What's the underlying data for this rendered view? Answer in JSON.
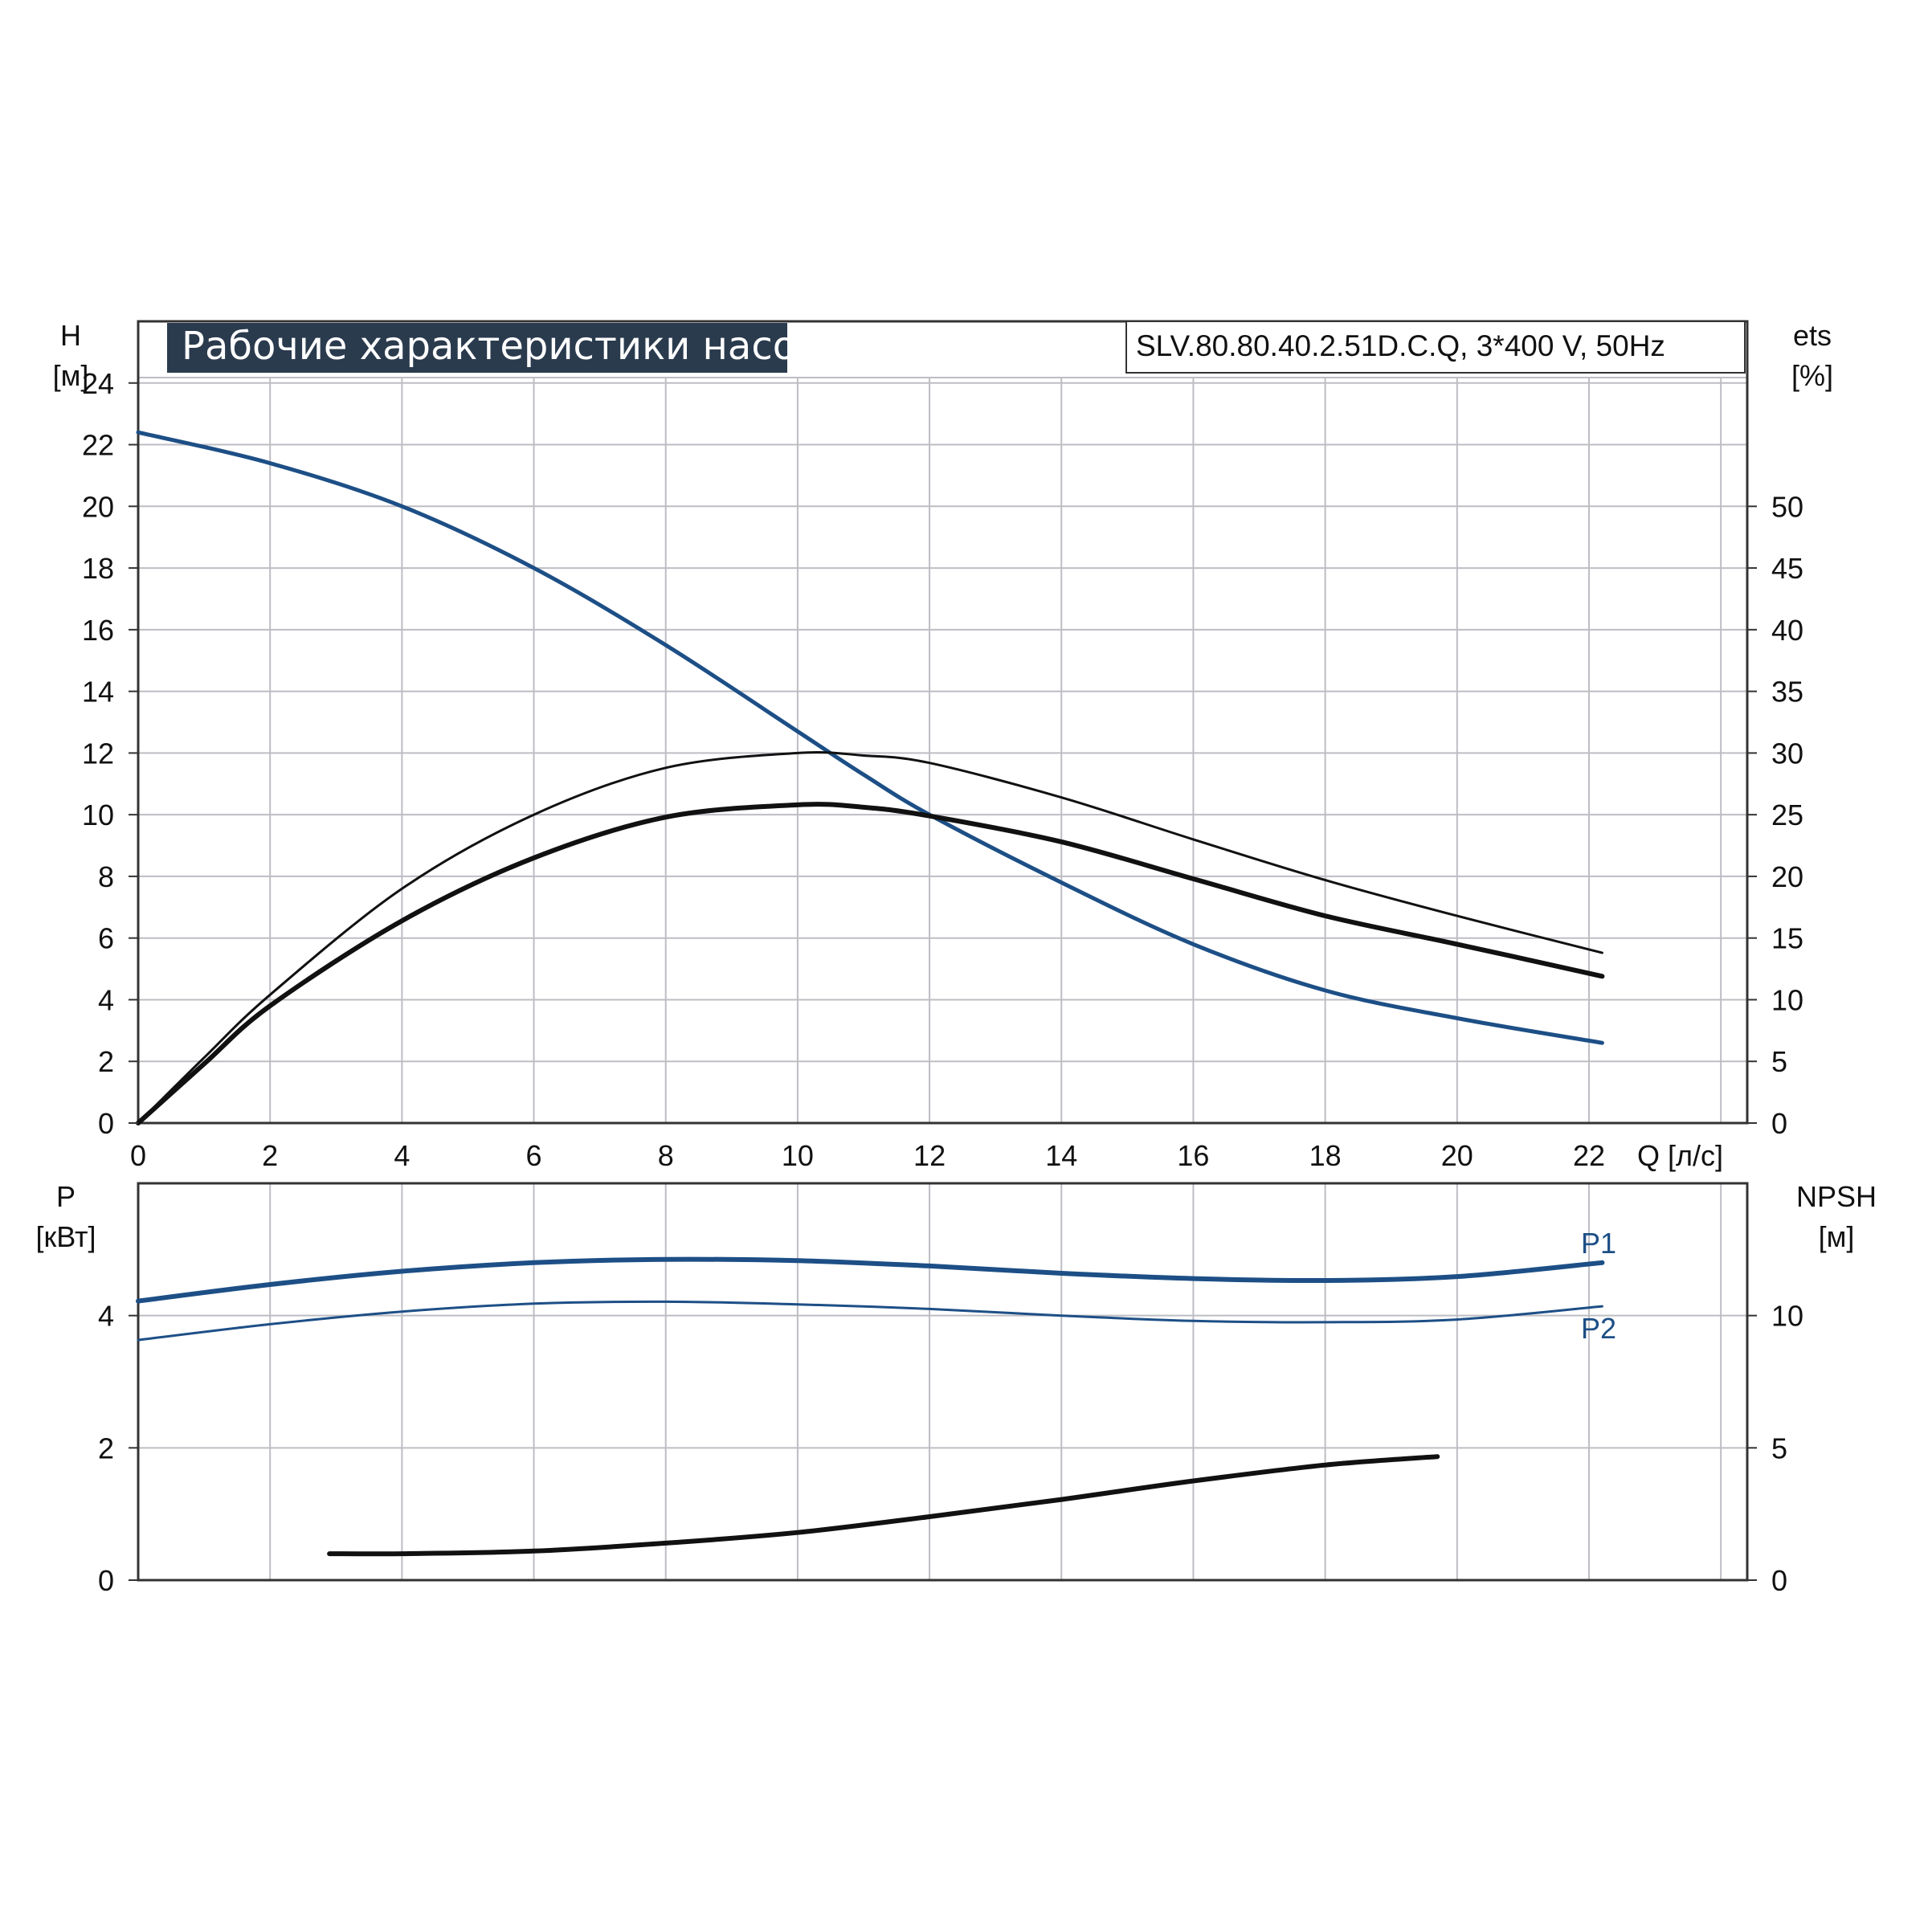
{
  "colors": {
    "curve_blue": "#1d4f86",
    "curve_black": "#111111",
    "grid": "#bdbdc4",
    "frame": "#333333",
    "title_bg": "#2b3b4e",
    "title_text": "#ffffff"
  },
  "header": {
    "title": "Рабочие характеристики насоса",
    "model": "SLV.80.80.40.2.51D.C.Q, 3*400 V, 50Hz"
  },
  "chart_data": [
    {
      "type": "line",
      "xlabel": "Q [л/с]",
      "ylabel": "H",
      "ylabel_unit": "[м]",
      "y2label": "ets",
      "y2label_unit": "[%]",
      "xlim": [
        0,
        24.4
      ],
      "ylim": [
        0,
        26
      ],
      "y2lim": [
        0,
        65
      ],
      "xticks": [
        "0",
        "2",
        "4",
        "6",
        "8",
        "10",
        "12",
        "14",
        "16",
        "18",
        "20",
        "22"
      ],
      "yticks": [
        "0",
        "2",
        "4",
        "6",
        "8",
        "10",
        "12",
        "14",
        "16",
        "18",
        "20",
        "22",
        "24"
      ],
      "y2ticks": [
        "0",
        "5",
        "10",
        "15",
        "20",
        "25",
        "30",
        "35",
        "40",
        "45",
        "50"
      ],
      "grid": true,
      "series": [
        {
          "axis": "left",
          "color": "#1d4f86",
          "width": 5,
          "x": [
            0,
            2,
            4,
            6,
            8,
            10,
            11,
            12,
            14,
            16,
            18,
            20,
            22.2
          ],
          "y": [
            22.4,
            21.4,
            20.0,
            18.0,
            15.5,
            12.7,
            11.3,
            10.0,
            7.8,
            5.8,
            4.3,
            3.4,
            2.6
          ]
        },
        {
          "axis": "right",
          "color": "#111111",
          "width": 3,
          "x": [
            0,
            1,
            2,
            4,
            6,
            8,
            10,
            11,
            12,
            14,
            16,
            18,
            20,
            22.2
          ],
          "y": [
            0,
            5.3,
            10.4,
            19.0,
            25.0,
            28.8,
            30.0,
            29.8,
            29.2,
            26.4,
            23.0,
            19.7,
            16.8,
            13.8
          ]
        },
        {
          "axis": "right",
          "color": "#111111",
          "width": 6,
          "x": [
            0,
            1,
            2,
            4,
            6,
            8,
            10,
            11,
            12,
            14,
            16,
            18,
            20,
            22.2
          ],
          "y": [
            0,
            4.8,
            9.5,
            16.4,
            21.5,
            24.8,
            25.8,
            25.6,
            24.9,
            22.8,
            19.8,
            16.8,
            14.5,
            11.9
          ]
        }
      ]
    },
    {
      "type": "line",
      "ylabel": "P",
      "ylabel_unit": "[кВт]",
      "y2label": "NPSH",
      "y2label_unit": "[м]",
      "xlim": [
        0,
        24.4
      ],
      "ylim": [
        0,
        6
      ],
      "y2lim": [
        0,
        15
      ],
      "yticks": [
        "0",
        "2",
        "4"
      ],
      "y2ticks": [
        "0",
        "5",
        "10"
      ],
      "grid": true,
      "series": [
        {
          "name": "P1",
          "axis": "left",
          "color": "#1d4f86",
          "width": 6,
          "x": [
            0,
            2,
            4,
            6,
            8,
            10,
            12,
            14,
            16,
            18,
            20,
            22.2
          ],
          "y": [
            4.22,
            4.47,
            4.67,
            4.8,
            4.85,
            4.83,
            4.75,
            4.64,
            4.56,
            4.53,
            4.59,
            4.8
          ]
        },
        {
          "name": "P2",
          "axis": "left",
          "color": "#1d4f86",
          "width": 3,
          "x": [
            0,
            2,
            4,
            6,
            8,
            10,
            12,
            14,
            16,
            18,
            20,
            22.2
          ],
          "y": [
            3.63,
            3.87,
            4.06,
            4.18,
            4.21,
            4.17,
            4.1,
            4.0,
            3.92,
            3.9,
            3.94,
            4.14
          ]
        },
        {
          "axis": "right",
          "color": "#111111",
          "width": 6,
          "x": [
            2.9,
            4,
            6,
            8,
            10,
            12,
            14,
            16,
            18,
            19.7
          ],
          "y": [
            1.0,
            1.0,
            1.1,
            1.4,
            1.8,
            2.4,
            3.05,
            3.75,
            4.35,
            4.67
          ]
        }
      ]
    }
  ]
}
